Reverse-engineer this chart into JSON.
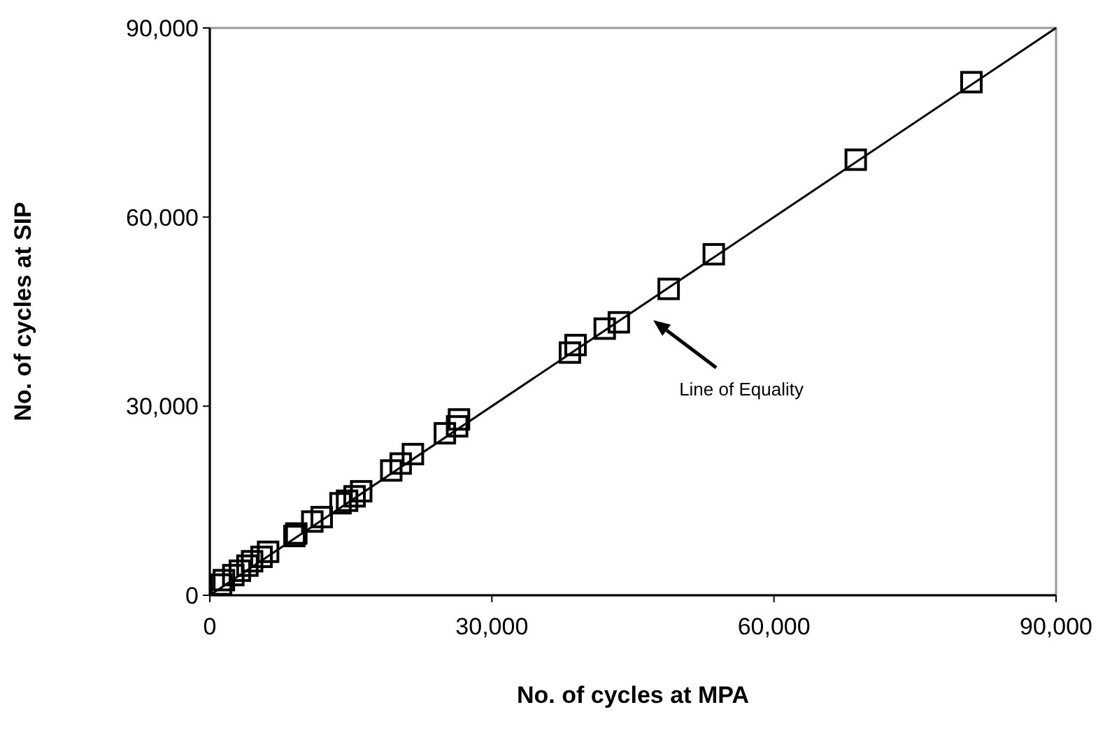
{
  "chart_data": {
    "type": "scatter",
    "xlabel": "No. of cycles at MPA",
    "ylabel": "No. of cycles at SIP",
    "xlim": [
      0,
      90000
    ],
    "ylim": [
      0,
      90000
    ],
    "xticks": [
      0,
      {
        "value": 30000,
        "label": "30,000"
      },
      {
        "value": 60000,
        "label": "60,000"
      },
      {
        "value": 90000,
        "label": "90,000"
      }
    ],
    "yticks": [
      0,
      {
        "value": 30000,
        "label": "30,000"
      },
      {
        "value": 60000,
        "label": "60,000"
      },
      {
        "value": 90000,
        "label": "90,000"
      }
    ],
    "grid": false,
    "marker": "square",
    "series": [
      {
        "color": "#000000",
        "x": [
          81000,
          68700,
          53600,
          48800,
          43500,
          42000,
          38900,
          38300,
          26500,
          26300,
          25000,
          21600,
          20300,
          19300,
          16100,
          15400,
          14600,
          13900,
          11900,
          10900,
          9200,
          9000,
          6200,
          5500,
          4500,
          4000,
          3200,
          2500,
          1500,
          1200
        ],
        "values": [
          81400,
          69100,
          54100,
          48600,
          43300,
          42300,
          39700,
          38500,
          27900,
          26800,
          25700,
          22400,
          20900,
          19800,
          16500,
          15700,
          15000,
          14600,
          12400,
          11700,
          9800,
          9400,
          6900,
          6100,
          5400,
          4700,
          3900,
          3200,
          2400,
          1700
        ]
      },
      {
        "type": "line",
        "color": "#000000",
        "marker": "none",
        "line_style": "solid",
        "x": [
          0,
          90000
        ],
        "values": [
          0,
          90000
        ]
      }
    ],
    "annotations": [
      "Line of Equality"
    ]
  }
}
